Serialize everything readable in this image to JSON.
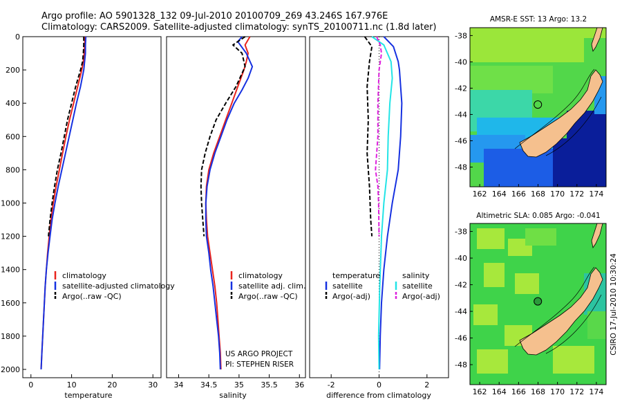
{
  "header": {
    "line1": "Argo profile: AO 5901328_132 09-Jul-2010 20100709_269 43.246S 167.976E",
    "line2": "Climatology: CARS2009. Satellite-adjusted climatology: synTS_20100711.nc (1.8d later)"
  },
  "colors": {
    "climatology": "#e8231d",
    "satellite": "#1530e0",
    "argo": "#000000",
    "satellite_salinity": "#22e4e6",
    "argo_adj_salinity": "#dd1fdd",
    "land": "#f5c08e"
  },
  "credit": {
    "project_line1": "US ARGO PROJECT",
    "project_line2": "PI: STEPHEN RISER",
    "csiro_stamp": "CSIRO 17-Jul-2010 10:30:24"
  },
  "chart_data": [
    {
      "type": "line",
      "id": "temperature",
      "xlabel": "temperature",
      "ylabel": "",
      "xlim": [
        -2,
        32
      ],
      "ylim": [
        2050,
        0
      ],
      "xticks": [
        "0",
        "10",
        "20",
        "30"
      ],
      "xtick_values": [
        0,
        10,
        20,
        30
      ],
      "yticks": [
        "0",
        "200",
        "400",
        "600",
        "800",
        "1000",
        "1200",
        "1400",
        "1600",
        "1800",
        "2000"
      ],
      "ytick_values": [
        0,
        200,
        400,
        600,
        800,
        1000,
        1200,
        1400,
        1600,
        1800,
        2000
      ],
      "legend": [
        "climatology",
        "satellite-adjusted climatology",
        "Argo(..raw -QC)"
      ],
      "series": [
        {
          "name": "climatology",
          "color": "#e8231d",
          "dash": "",
          "points": [
            [
              13.3,
              0
            ],
            [
              13.2,
              50
            ],
            [
              13.1,
              100
            ],
            [
              12.9,
              150
            ],
            [
              12.5,
              200
            ],
            [
              11.5,
              300
            ],
            [
              10.5,
              400
            ],
            [
              9.5,
              500
            ],
            [
              8.6,
              600
            ],
            [
              7.8,
              700
            ],
            [
              7.0,
              800
            ],
            [
              6.2,
              900
            ],
            [
              5.5,
              1000
            ],
            [
              4.9,
              1100
            ],
            [
              4.5,
              1200
            ],
            [
              4.1,
              1300
            ],
            [
              3.8,
              1400
            ],
            [
              3.5,
              1500
            ],
            [
              3.3,
              1600
            ],
            [
              3.1,
              1700
            ],
            [
              2.9,
              1800
            ],
            [
              2.7,
              1900
            ],
            [
              2.5,
              2000
            ]
          ]
        },
        {
          "name": "satellite-adjusted climatology",
          "color": "#1530e0",
          "dash": "",
          "points": [
            [
              13.5,
              0
            ],
            [
              13.4,
              50
            ],
            [
              13.4,
              100
            ],
            [
              13.2,
              150
            ],
            [
              13.0,
              200
            ],
            [
              12.2,
              300
            ],
            [
              11.2,
              400
            ],
            [
              10.3,
              500
            ],
            [
              9.4,
              600
            ],
            [
              8.5,
              700
            ],
            [
              7.6,
              800
            ],
            [
              6.7,
              900
            ],
            [
              5.9,
              1000
            ],
            [
              5.2,
              1100
            ],
            [
              4.7,
              1200
            ],
            [
              4.2,
              1300
            ],
            [
              3.8,
              1400
            ],
            [
              3.5,
              1500
            ],
            [
              3.3,
              1600
            ],
            [
              3.1,
              1700
            ],
            [
              2.9,
              1800
            ],
            [
              2.7,
              1900
            ],
            [
              2.5,
              2000
            ]
          ]
        },
        {
          "name": "Argo(..raw -QC)",
          "color": "#000000",
          "dash": "6,3",
          "points": [
            [
              13.0,
              0
            ],
            [
              13.0,
              50
            ],
            [
              12.9,
              100
            ],
            [
              12.7,
              150
            ],
            [
              12.2,
              200
            ],
            [
              11.0,
              300
            ],
            [
              10.0,
              400
            ],
            [
              9.0,
              500
            ],
            [
              8.2,
              600
            ],
            [
              7.4,
              700
            ],
            [
              6.5,
              800
            ],
            [
              5.8,
              900
            ],
            [
              5.2,
              1000
            ],
            [
              4.7,
              1100
            ],
            [
              4.3,
              1200
            ]
          ]
        }
      ]
    },
    {
      "type": "line",
      "id": "salinity",
      "xlabel": "salinity",
      "ylabel": "",
      "xlim": [
        33.8,
        36.1
      ],
      "ylim": [
        2050,
        0
      ],
      "xticks": [
        "34",
        "34.5",
        "35",
        "35.5",
        "36"
      ],
      "xtick_values": [
        34,
        34.5,
        35,
        35.5,
        36
      ],
      "legend": [
        "climatology",
        "satellite adj. clim.",
        "Argo(..raw -QC)"
      ],
      "series": [
        {
          "name": "climatology",
          "color": "#e8231d",
          "dash": "",
          "points": [
            [
              35.18,
              0
            ],
            [
              35.1,
              50
            ],
            [
              35.15,
              100
            ],
            [
              35.12,
              150
            ],
            [
              35.08,
              200
            ],
            [
              34.98,
              300
            ],
            [
              34.88,
              400
            ],
            [
              34.78,
              500
            ],
            [
              34.68,
              600
            ],
            [
              34.58,
              700
            ],
            [
              34.5,
              800
            ],
            [
              34.46,
              900
            ],
            [
              34.45,
              1000
            ],
            [
              34.46,
              1100
            ],
            [
              34.48,
              1200
            ],
            [
              34.52,
              1300
            ],
            [
              34.56,
              1400
            ],
            [
              34.6,
              1500
            ],
            [
              34.63,
              1600
            ],
            [
              34.65,
              1700
            ],
            [
              34.67,
              1800
            ],
            [
              34.69,
              1900
            ],
            [
              34.7,
              2000
            ]
          ]
        },
        {
          "name": "satellite adj. clim.",
          "color": "#1530e0",
          "dash": "",
          "points": [
            [
              35.05,
              0
            ],
            [
              34.98,
              30
            ],
            [
              35.12,
              100
            ],
            [
              35.22,
              180
            ],
            [
              35.15,
              250
            ],
            [
              35.05,
              320
            ],
            [
              34.92,
              400
            ],
            [
              34.8,
              500
            ],
            [
              34.7,
              600
            ],
            [
              34.6,
              700
            ],
            [
              34.52,
              800
            ],
            [
              34.47,
              900
            ],
            [
              34.45,
              1000
            ],
            [
              34.45,
              1100
            ],
            [
              34.46,
              1200
            ],
            [
              34.5,
              1300
            ],
            [
              34.53,
              1400
            ],
            [
              34.57,
              1500
            ],
            [
              34.6,
              1600
            ],
            [
              34.63,
              1700
            ],
            [
              34.66,
              1800
            ],
            [
              34.68,
              1900
            ],
            [
              34.69,
              2000
            ]
          ]
        },
        {
          "name": "Argo(..raw -QC)",
          "color": "#000000",
          "dash": "6,3",
          "points": [
            [
              35.1,
              0
            ],
            [
              34.9,
              50
            ],
            [
              35.05,
              100
            ],
            [
              35.1,
              180
            ],
            [
              34.95,
              300
            ],
            [
              34.78,
              400
            ],
            [
              34.62,
              500
            ],
            [
              34.52,
              600
            ],
            [
              34.44,
              700
            ],
            [
              34.38,
              800
            ],
            [
              34.37,
              900
            ],
            [
              34.38,
              1000
            ],
            [
              34.4,
              1100
            ],
            [
              34.42,
              1200
            ]
          ]
        }
      ]
    },
    {
      "type": "line",
      "id": "difference",
      "xlabel": "difference from climatology",
      "ylabel": "",
      "xlim": [
        -2.9,
        2.9
      ],
      "ylim": [
        2050,
        0
      ],
      "xticks": [
        "-2",
        "0",
        "2"
      ],
      "xtick_values": [
        -2,
        0,
        2
      ],
      "legend_headers": [
        "temperature",
        "salinity"
      ],
      "legend_left": [
        "satellite",
        "Argo(-adj)"
      ],
      "legend_right": [
        "satellite",
        "Argo(-adj)"
      ],
      "series": [
        {
          "name": "temperature satellite",
          "color": "#1530e0",
          "dash": "",
          "points": [
            [
              0.2,
              0
            ],
            [
              0.6,
              60
            ],
            [
              0.8,
              150
            ],
            [
              0.85,
              200
            ],
            [
              0.95,
              400
            ],
            [
              0.9,
              600
            ],
            [
              0.8,
              800
            ],
            [
              0.55,
              1000
            ],
            [
              0.35,
              1200
            ],
            [
              0.2,
              1400
            ],
            [
              0.1,
              1600
            ],
            [
              0.05,
              1800
            ],
            [
              0.02,
              2000
            ]
          ]
        },
        {
          "name": "temperature Argo(-adj)",
          "color": "#000000",
          "dash": "6,3",
          "points": [
            [
              -0.6,
              0
            ],
            [
              -0.3,
              60
            ],
            [
              -0.4,
              150
            ],
            [
              -0.5,
              300
            ],
            [
              -0.45,
              500
            ],
            [
              -0.5,
              700
            ],
            [
              -0.4,
              900
            ],
            [
              -0.35,
              1100
            ],
            [
              -0.3,
              1200
            ]
          ]
        },
        {
          "name": "salinity satellite",
          "color": "#22e4e6",
          "dash": "",
          "points": [
            [
              -0.3,
              0
            ],
            [
              0.2,
              50
            ],
            [
              0.5,
              150
            ],
            [
              0.55,
              250
            ],
            [
              0.45,
              400
            ],
            [
              0.38,
              600
            ],
            [
              0.35,
              800
            ],
            [
              0.2,
              1000
            ],
            [
              0.1,
              1200
            ],
            [
              0.03,
              1500
            ],
            [
              -0.02,
              1800
            ],
            [
              0.0,
              2000
            ]
          ]
        },
        {
          "name": "salinity Argo(-adj)",
          "color": "#dd1fdd",
          "dash": "6,3",
          "points": [
            [
              -0.1,
              0
            ],
            [
              0.05,
              50
            ],
            [
              0.1,
              100
            ],
            [
              0.0,
              200
            ],
            [
              -0.05,
              400
            ],
            [
              -0.05,
              600
            ],
            [
              -0.15,
              800
            ],
            [
              -0.05,
              900
            ],
            [
              -0.02,
              1000
            ],
            [
              0.0,
              1200
            ]
          ]
        }
      ]
    },
    {
      "type": "heatmap",
      "id": "sst-map",
      "title": "AMSR-E SST: 13 Argo: 13.2",
      "xlim": [
        161,
        175
      ],
      "ylim": [
        -49.5,
        -37.4
      ],
      "xticks": [
        "162",
        "164",
        "166",
        "168",
        "170",
        "172",
        "174"
      ],
      "xtick_values": [
        162,
        164,
        166,
        168,
        170,
        172,
        174
      ],
      "yticks": [
        "-38",
        "-40",
        "-42",
        "-44",
        "-46",
        "-48"
      ],
      "ytick_values": [
        -38,
        -40,
        -42,
        -44,
        -46,
        -48
      ],
      "float_position": [
        167.976,
        -43.246
      ]
    },
    {
      "type": "heatmap",
      "id": "sla-map",
      "title": "Altimetric SLA: 0.085 Argo: -0.041",
      "xlim": [
        161,
        175
      ],
      "ylim": [
        -49.5,
        -37.4
      ],
      "xticks": [
        "162",
        "164",
        "166",
        "168",
        "170",
        "172",
        "174"
      ],
      "xtick_values": [
        162,
        164,
        166,
        168,
        170,
        172,
        174
      ],
      "yticks": [
        "-38",
        "-40",
        "-42",
        "-44",
        "-46",
        "-48"
      ],
      "ytick_values": [
        -38,
        -40,
        -42,
        -44,
        -46,
        -48
      ],
      "float_position": [
        167.976,
        -43.246
      ]
    }
  ]
}
